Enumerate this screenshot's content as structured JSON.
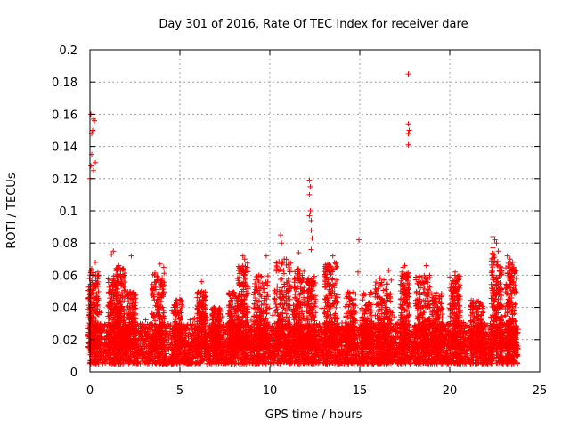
{
  "chart_data": {
    "type": "scatter",
    "title": "Day 301 of 2016, Rate Of TEC Index for receiver dare",
    "xlabel": "GPS time / hours",
    "ylabel": "ROTI / TECUs",
    "xlim": [
      0,
      25
    ],
    "ylim": [
      0,
      0.2
    ],
    "xticks": [
      0,
      5,
      10,
      15,
      20,
      25
    ],
    "xtick_labels": [
      "0",
      "5",
      "10",
      "15",
      "20",
      "25"
    ],
    "yticks": [
      0,
      0.02,
      0.04,
      0.06,
      0.08,
      0.1,
      0.12,
      0.14,
      0.16,
      0.18,
      0.2
    ],
    "ytick_labels": [
      "0",
      "0.02",
      "0.04",
      "0.06",
      "0.08",
      "0.1",
      "0.12",
      "0.14",
      "0.16",
      "0.18",
      "0.2"
    ],
    "grid": true,
    "marker": "+",
    "color": "#ff0000",
    "series": [
      {
        "name": "ROTI",
        "x_range": [
          0,
          23.8
        ],
        "background_band": [
          0.005,
          0.03
        ],
        "notable_points": [
          {
            "x": 0.0,
            "y": 0.12
          },
          {
            "x": 0.05,
            "y": 0.128
          },
          {
            "x": 0.1,
            "y": 0.135
          },
          {
            "x": 0.1,
            "y": 0.148
          },
          {
            "x": 0.15,
            "y": 0.15
          },
          {
            "x": 0.2,
            "y": 0.157
          },
          {
            "x": 0.25,
            "y": 0.156
          },
          {
            "x": 0.05,
            "y": 0.16
          },
          {
            "x": 0.2,
            "y": 0.125
          },
          {
            "x": 0.3,
            "y": 0.13
          },
          {
            "x": 0.3,
            "y": 0.068
          },
          {
            "x": 0.15,
            "y": 0.06
          },
          {
            "x": 1.2,
            "y": 0.073
          },
          {
            "x": 1.3,
            "y": 0.075
          },
          {
            "x": 1.6,
            "y": 0.066
          },
          {
            "x": 2.3,
            "y": 0.072
          },
          {
            "x": 3.9,
            "y": 0.067
          },
          {
            "x": 4.1,
            "y": 0.065
          },
          {
            "x": 6.2,
            "y": 0.056
          },
          {
            "x": 8.5,
            "y": 0.072
          },
          {
            "x": 8.6,
            "y": 0.07
          },
          {
            "x": 9.8,
            "y": 0.072
          },
          {
            "x": 10.6,
            "y": 0.085
          },
          {
            "x": 10.65,
            "y": 0.08
          },
          {
            "x": 10.8,
            "y": 0.07
          },
          {
            "x": 11.6,
            "y": 0.074
          },
          {
            "x": 12.2,
            "y": 0.119
          },
          {
            "x": 12.25,
            "y": 0.115
          },
          {
            "x": 12.2,
            "y": 0.11
          },
          {
            "x": 12.25,
            "y": 0.1
          },
          {
            "x": 12.2,
            "y": 0.097
          },
          {
            "x": 12.3,
            "y": 0.094
          },
          {
            "x": 12.3,
            "y": 0.088
          },
          {
            "x": 12.35,
            "y": 0.083
          },
          {
            "x": 12.3,
            "y": 0.076
          },
          {
            "x": 13.5,
            "y": 0.072
          },
          {
            "x": 13.6,
            "y": 0.068
          },
          {
            "x": 14.95,
            "y": 0.082
          },
          {
            "x": 14.9,
            "y": 0.062
          },
          {
            "x": 16.6,
            "y": 0.063
          },
          {
            "x": 17.4,
            "y": 0.065
          },
          {
            "x": 17.5,
            "y": 0.066
          },
          {
            "x": 17.7,
            "y": 0.185
          },
          {
            "x": 17.7,
            "y": 0.154
          },
          {
            "x": 17.75,
            "y": 0.15
          },
          {
            "x": 17.7,
            "y": 0.148
          },
          {
            "x": 17.7,
            "y": 0.141
          },
          {
            "x": 18.7,
            "y": 0.066
          },
          {
            "x": 20.3,
            "y": 0.062
          },
          {
            "x": 22.4,
            "y": 0.084
          },
          {
            "x": 22.5,
            "y": 0.082
          },
          {
            "x": 22.6,
            "y": 0.08
          },
          {
            "x": 22.4,
            "y": 0.077
          },
          {
            "x": 22.7,
            "y": 0.075
          },
          {
            "x": 23.2,
            "y": 0.072
          },
          {
            "x": 23.35,
            "y": 0.07
          },
          {
            "x": 23.5,
            "y": 0.068
          },
          {
            "x": 23.6,
            "y": 0.062
          },
          {
            "x": 23.7,
            "y": 0.058
          },
          {
            "x": 23.55,
            "y": 0.052
          }
        ],
        "activity_bursts": [
          {
            "center": 0.2,
            "width": 0.6,
            "peak": 0.065
          },
          {
            "center": 1.3,
            "width": 0.6,
            "peak": 0.06
          },
          {
            "center": 1.7,
            "width": 0.5,
            "peak": 0.065
          },
          {
            "center": 2.3,
            "width": 0.5,
            "peak": 0.05
          },
          {
            "center": 3.8,
            "width": 0.7,
            "peak": 0.062
          },
          {
            "center": 4.9,
            "width": 0.5,
            "peak": 0.045
          },
          {
            "center": 6.2,
            "width": 0.5,
            "peak": 0.05
          },
          {
            "center": 7.0,
            "width": 0.5,
            "peak": 0.04
          },
          {
            "center": 8.0,
            "width": 0.6,
            "peak": 0.05
          },
          {
            "center": 8.5,
            "width": 0.6,
            "peak": 0.068
          },
          {
            "center": 9.5,
            "width": 0.8,
            "peak": 0.06
          },
          {
            "center": 10.7,
            "width": 0.9,
            "peak": 0.07
          },
          {
            "center": 11.6,
            "width": 0.6,
            "peak": 0.065
          },
          {
            "center": 12.3,
            "width": 0.5,
            "peak": 0.06
          },
          {
            "center": 13.4,
            "width": 0.8,
            "peak": 0.068
          },
          {
            "center": 14.5,
            "width": 0.6,
            "peak": 0.05
          },
          {
            "center": 15.4,
            "width": 0.6,
            "peak": 0.05
          },
          {
            "center": 16.3,
            "width": 0.9,
            "peak": 0.058
          },
          {
            "center": 17.5,
            "width": 0.5,
            "peak": 0.062
          },
          {
            "center": 18.5,
            "width": 0.8,
            "peak": 0.06
          },
          {
            "center": 19.3,
            "width": 0.6,
            "peak": 0.05
          },
          {
            "center": 20.3,
            "width": 0.6,
            "peak": 0.06
          },
          {
            "center": 21.5,
            "width": 0.7,
            "peak": 0.045
          },
          {
            "center": 22.6,
            "width": 0.6,
            "peak": 0.075
          },
          {
            "center": 23.4,
            "width": 0.6,
            "peak": 0.068
          }
        ]
      }
    ]
  }
}
